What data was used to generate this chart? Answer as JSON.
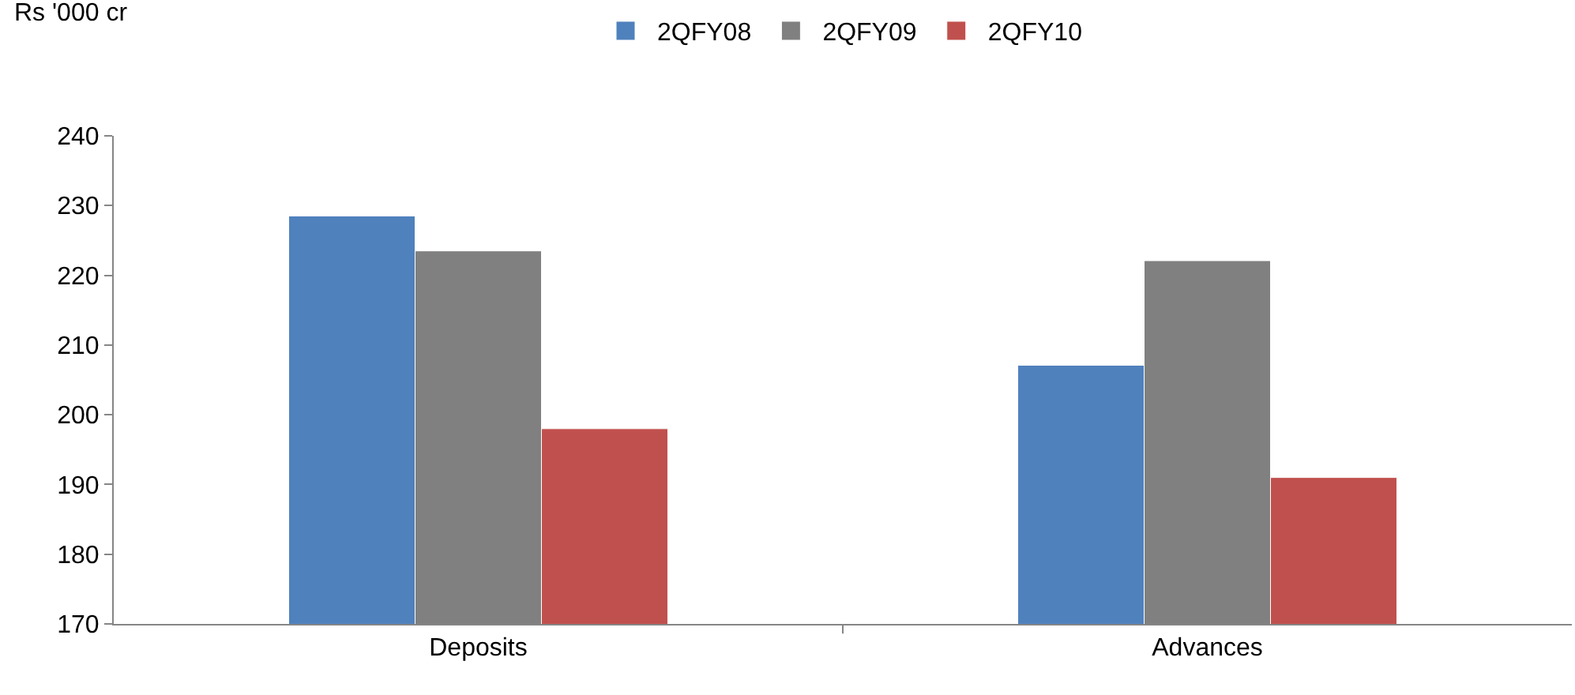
{
  "chart_data": {
    "type": "bar",
    "ylabel": "Rs '000 cr",
    "categories": [
      "Deposits",
      "Advances"
    ],
    "series": [
      {
        "name": "2QFY08",
        "color": "#4f81bd",
        "values": [
          228.5,
          207.1
        ]
      },
      {
        "name": "2QFY09",
        "color": "#808080",
        "values": [
          223.5,
          222.1
        ]
      },
      {
        "name": "2QFY10",
        "color": "#c0504d",
        "values": [
          198,
          191
        ]
      }
    ],
    "ylim": [
      170,
      240
    ],
    "yticks": [
      170,
      180,
      190,
      200,
      210,
      220,
      230,
      240
    ],
    "legend": "top"
  }
}
